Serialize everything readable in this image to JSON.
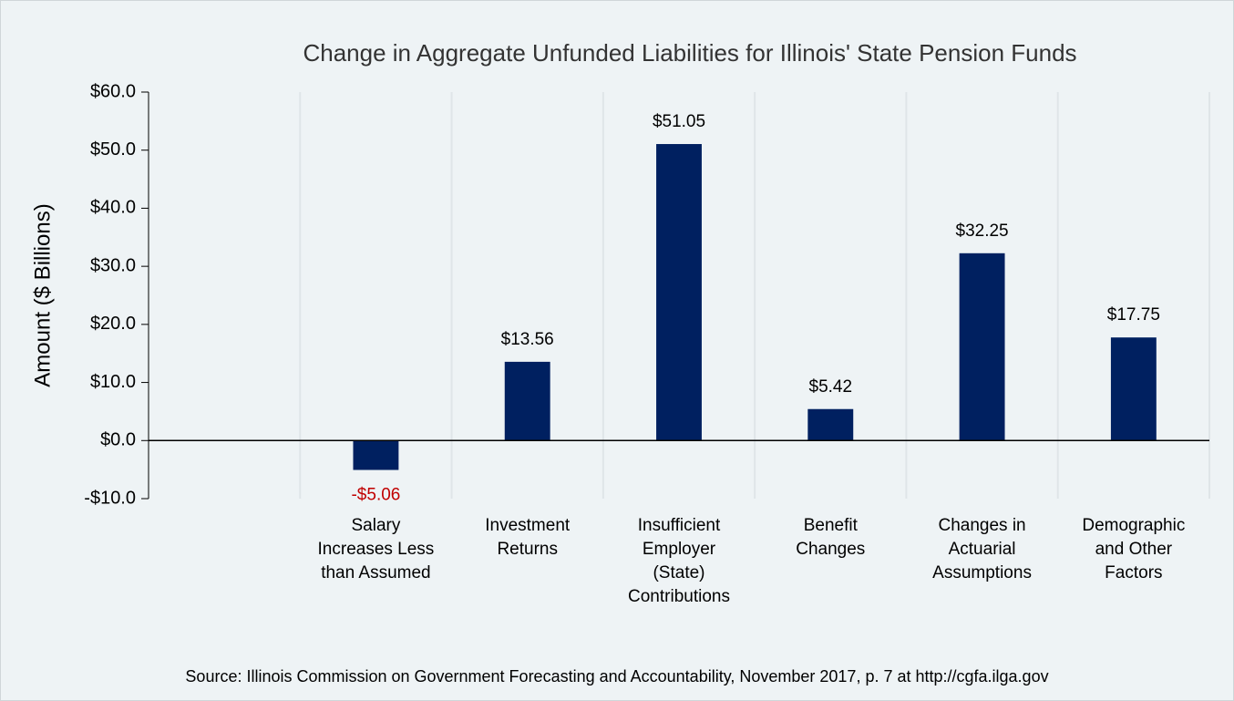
{
  "chart_data": {
    "type": "bar",
    "title": "Change in Aggregate Unfunded Liabilities for Illinois' State Pension Funds",
    "y_label": "Amount ($ Billions)",
    "source": "Source: Illinois Commission on Government Forecasting and Accountability, November 2017, p. 7 at http://cgfa.ilga.gov",
    "categories": [
      null,
      "Salary\nIncreases Less\nthan Assumed",
      "Investment\nReturns",
      "Insufficient\nEmployer\n(State)\nContributions",
      "Benefit\nChanges",
      "Changes in\nActuarial\nAssumptions",
      "Demographic\nand Other\nFactors"
    ],
    "values": [
      null,
      -5.06,
      13.56,
      51.05,
      5.42,
      32.25,
      17.75
    ],
    "value_labels": [
      null,
      "-$5.06",
      "$13.56",
      "$51.05",
      "$5.42",
      "$32.25",
      "$17.75"
    ],
    "color": "#002060",
    "negative_label_color": "#c00000",
    "ylim": [
      -10,
      60
    ],
    "yticks": [
      {
        "value": -10,
        "label": "-$10.0"
      },
      {
        "value": 0,
        "label": "$0.0"
      },
      {
        "value": 10,
        "label": "$10.0"
      },
      {
        "value": 20,
        "label": "$20.0"
      },
      {
        "value": 30,
        "label": "$30.0"
      },
      {
        "value": 40,
        "label": "$40.0"
      },
      {
        "value": 50,
        "label": "$50.0"
      },
      {
        "value": 60,
        "label": "$60.0"
      }
    ],
    "grid": true
  }
}
